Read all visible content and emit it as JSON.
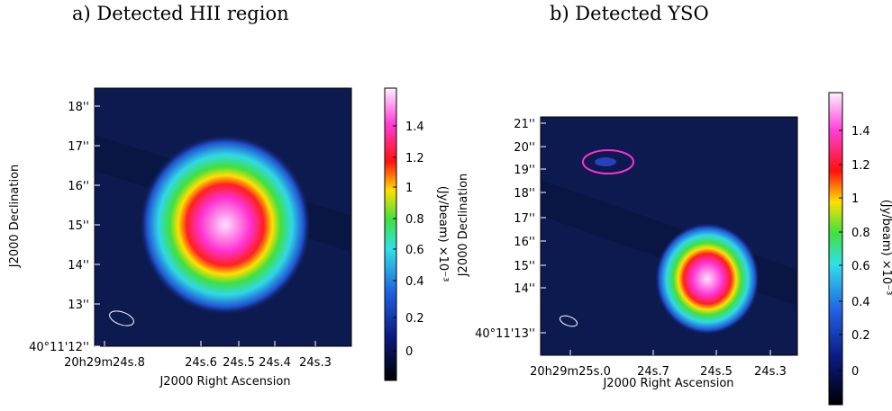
{
  "panels": [
    {
      "title": "a) Detected HII region",
      "x_axis_label": "J2000 Right Ascension",
      "y_axis_label": "J2000 Declination",
      "x_tick_labels": [
        "20h29m24s.8",
        "24s.6",
        "24s.5",
        "24s.4",
        "24s.3"
      ],
      "y_tick_labels": [
        "18''",
        "17''",
        "16''",
        "15''",
        "14''",
        "13''",
        "40°11'12''"
      ],
      "colorbar_label": "(Jy/beam) ×10⁻³",
      "colorbar_tick_labels": [
        1.4,
        1.2,
        1,
        0.8,
        0.6,
        0.4,
        0.2,
        0
      ]
    },
    {
      "title": "b) Detected YSO",
      "x_axis_label": "J2000 Right Ascension",
      "y_axis_label": "J2000 Declination",
      "x_tick_labels": [
        "20h29m25s.0",
        "24s.7",
        "24s.5",
        "24s.3"
      ],
      "y_tick_labels": [
        "21''",
        "20''",
        "19''",
        "18''",
        "17''",
        "16''",
        "15''",
        "14''",
        "40°11'13''"
      ],
      "colorbar_label": "(Jy/beam) ×10⁻³",
      "colorbar_tick_labels": [
        1.4,
        1.2,
        1,
        0.8,
        0.6,
        0.4,
        0.2,
        0
      ]
    }
  ]
}
